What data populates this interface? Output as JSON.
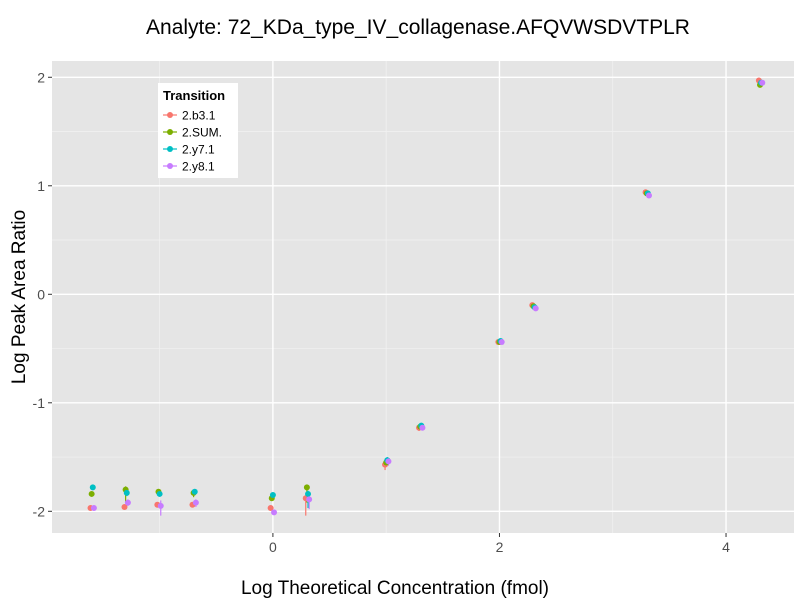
{
  "chart_data": {
    "type": "scatter",
    "title": "Analyte: 72_KDa_type_IV_collagenase.AFQVWSDVTPLR",
    "xlabel": "Log Theoretical Concentration (fmol)",
    "ylabel": "Log Peak Area Ratio",
    "xlim": [
      -1.95,
      4.6
    ],
    "ylim": [
      -2.2,
      2.15
    ],
    "xticks": [
      0,
      2,
      4
    ],
    "xtick_labels": [
      "0",
      "2",
      "4"
    ],
    "yticks": [
      -2,
      -1,
      0,
      1,
      2
    ],
    "ytick_labels": [
      "-2",
      "-1",
      "0",
      "1",
      "2"
    ],
    "grid": true,
    "legend": {
      "title": "Transition",
      "position": "top-left",
      "entries": [
        "2.b3.1",
        "2.SUM.",
        "2.y7.1",
        "2.y8.1"
      ]
    },
    "colors": {
      "2.b3.1": "#f8766d",
      "2.SUM.": "#7cae00",
      "2.y7.1": "#00bfc4",
      "2.y8.1": "#c77cff"
    },
    "series": [
      {
        "name": "2.b3.1",
        "points": [
          {
            "x": -1.61,
            "y": -1.97,
            "lo": -1.99,
            "hi": -1.95
          },
          {
            "x": -1.31,
            "y": -1.96,
            "lo": -1.98,
            "hi": -1.94
          },
          {
            "x": -1.02,
            "y": -1.94,
            "lo": -1.96,
            "hi": -1.92
          },
          {
            "x": -0.71,
            "y": -1.94,
            "lo": -1.96,
            "hi": -1.92
          },
          {
            "x": -0.02,
            "y": -1.97,
            "lo": -1.99,
            "hi": -1.95
          },
          {
            "x": 0.29,
            "y": -1.88,
            "lo": -2.04,
            "hi": -1.85
          },
          {
            "x": 0.99,
            "y": -1.57,
            "lo": -1.62,
            "hi": -1.52
          },
          {
            "x": 1.29,
            "y": -1.23,
            "lo": -1.26,
            "hi": -1.2
          },
          {
            "x": 1.99,
            "y": -0.44,
            "lo": -0.46,
            "hi": -0.42
          },
          {
            "x": 2.29,
            "y": -0.1,
            "lo": -0.12,
            "hi": -0.08
          },
          {
            "x": 3.29,
            "y": 0.94,
            "lo": 0.92,
            "hi": 0.96
          },
          {
            "x": 4.29,
            "y": 1.97,
            "lo": 1.95,
            "hi": 1.99
          }
        ]
      },
      {
        "name": "2.SUM.",
        "points": [
          {
            "x": -1.6,
            "y": -1.84,
            "lo": -1.86,
            "hi": -1.82
          },
          {
            "x": -1.3,
            "y": -1.8,
            "lo": -1.92,
            "hi": -1.77
          },
          {
            "x": -1.01,
            "y": -1.82,
            "lo": -1.85,
            "hi": -1.8
          },
          {
            "x": -0.7,
            "y": -1.83,
            "lo": -1.87,
            "hi": -1.8
          },
          {
            "x": -0.01,
            "y": -1.88,
            "lo": -1.9,
            "hi": -1.86
          },
          {
            "x": 0.3,
            "y": -1.78,
            "lo": -1.92,
            "hi": -1.76
          },
          {
            "x": 1.0,
            "y": -1.55,
            "lo": -1.58,
            "hi": -1.52
          },
          {
            "x": 1.3,
            "y": -1.22,
            "lo": -1.24,
            "hi": -1.2
          },
          {
            "x": 2.0,
            "y": -0.44,
            "lo": -0.46,
            "hi": -0.42
          },
          {
            "x": 2.3,
            "y": -0.11,
            "lo": -0.13,
            "hi": -0.09
          },
          {
            "x": 3.3,
            "y": 0.93,
            "lo": 0.91,
            "hi": 0.95
          },
          {
            "x": 4.3,
            "y": 1.93,
            "lo": 1.91,
            "hi": 1.95
          }
        ]
      },
      {
        "name": "2.y7.1",
        "points": [
          {
            "x": -1.59,
            "y": -1.78,
            "lo": -1.8,
            "hi": -1.76
          },
          {
            "x": -1.29,
            "y": -1.83,
            "lo": -1.86,
            "hi": -1.8
          },
          {
            "x": -1.0,
            "y": -1.84,
            "lo": -1.86,
            "hi": -1.82
          },
          {
            "x": -0.69,
            "y": -1.82,
            "lo": -1.84,
            "hi": -1.8
          },
          {
            "x": 0.0,
            "y": -1.85,
            "lo": -1.87,
            "hi": -1.83
          },
          {
            "x": 0.31,
            "y": -1.84,
            "lo": -1.97,
            "hi": -1.81
          },
          {
            "x": 1.01,
            "y": -1.53,
            "lo": -1.56,
            "hi": -1.5
          },
          {
            "x": 1.31,
            "y": -1.21,
            "lo": -1.23,
            "hi": -1.19
          },
          {
            "x": 2.01,
            "y": -0.43,
            "lo": -0.45,
            "hi": -0.41
          },
          {
            "x": 2.31,
            "y": -0.12,
            "lo": -0.14,
            "hi": -0.1
          },
          {
            "x": 3.31,
            "y": 0.93,
            "lo": 0.91,
            "hi": 0.95
          },
          {
            "x": 4.31,
            "y": 1.95,
            "lo": 1.93,
            "hi": 1.97
          }
        ]
      },
      {
        "name": "2.y8.1",
        "points": [
          {
            "x": -1.58,
            "y": -1.97,
            "lo": -1.99,
            "hi": -1.95
          },
          {
            "x": -1.28,
            "y": -1.92,
            "lo": -1.95,
            "hi": -1.89
          },
          {
            "x": -0.99,
            "y": -1.95,
            "lo": -2.04,
            "hi": -1.9
          },
          {
            "x": -0.68,
            "y": -1.92,
            "lo": -1.96,
            "hi": -1.89
          },
          {
            "x": 0.01,
            "y": -2.01,
            "lo": -2.03,
            "hi": -1.99
          },
          {
            "x": 0.32,
            "y": -1.89,
            "lo": -1.98,
            "hi": -1.84
          },
          {
            "x": 1.02,
            "y": -1.54,
            "lo": -1.58,
            "hi": -1.51
          },
          {
            "x": 1.32,
            "y": -1.23,
            "lo": -1.25,
            "hi": -1.21
          },
          {
            "x": 2.02,
            "y": -0.44,
            "lo": -0.46,
            "hi": -0.42
          },
          {
            "x": 2.32,
            "y": -0.13,
            "lo": -0.15,
            "hi": -0.11
          },
          {
            "x": 3.32,
            "y": 0.91,
            "lo": 0.89,
            "hi": 0.93
          },
          {
            "x": 4.32,
            "y": 1.95,
            "lo": 1.93,
            "hi": 1.97
          }
        ]
      }
    ]
  }
}
